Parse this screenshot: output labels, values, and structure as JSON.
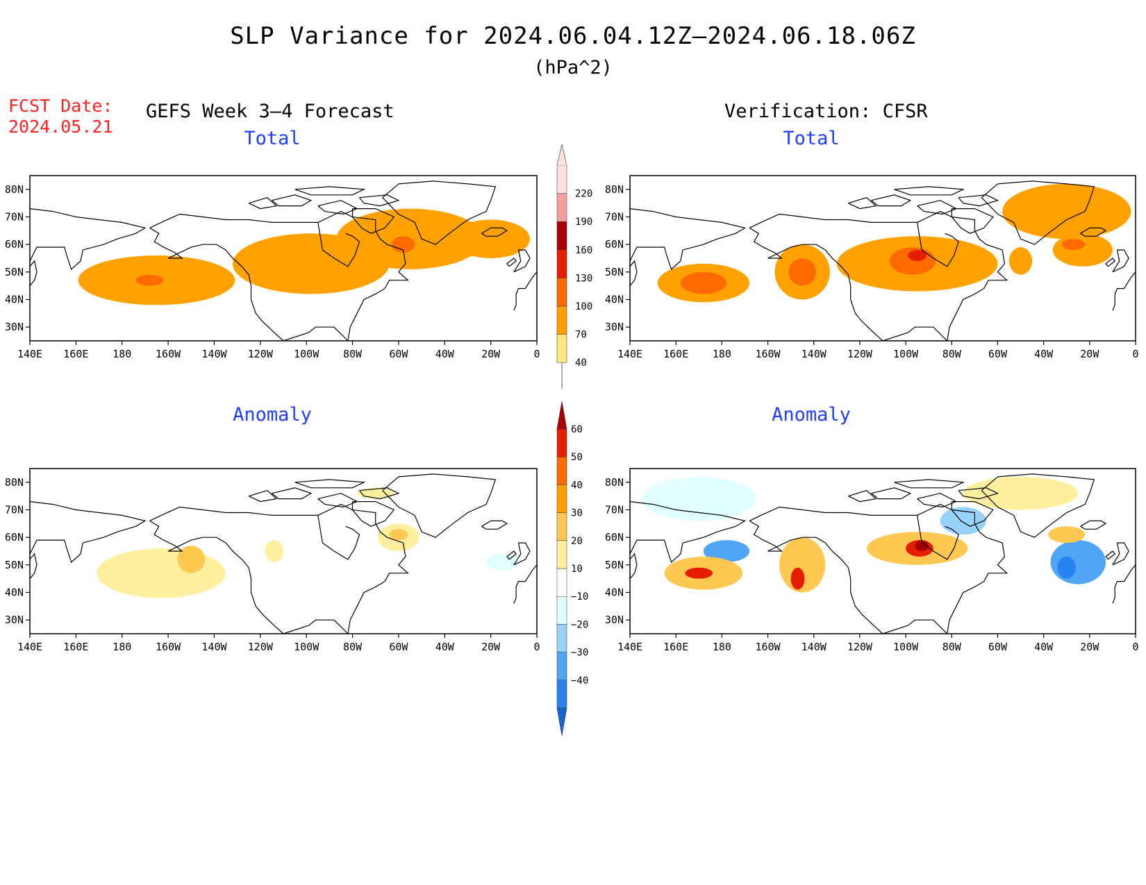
{
  "header": {
    "title": "SLP Variance for 2024.06.04.12Z–2024.06.18.06Z",
    "units": "(hPa^2)",
    "fcst_label": "FCST Date:",
    "fcst_date": "2024.05.21",
    "left_model": "GEFS Week 3–4 Forecast",
    "right_model": "Verification: CFSR"
  },
  "panels": {
    "top_left_title": "Total",
    "top_right_title": "Total",
    "bottom_left_title": "Anomaly",
    "bottom_right_title": "Anomaly"
  },
  "axes": {
    "lon_ticks": [
      "140E",
      "160E",
      "180",
      "160W",
      "140W",
      "120W",
      "100W",
      "80W",
      "60W",
      "40W",
      "20W",
      "0"
    ],
    "lat_ticks": [
      "80N",
      "70N",
      "60N",
      "50N",
      "40N",
      "30N"
    ],
    "lon_range": [
      140,
      360
    ],
    "lat_range": [
      25,
      85
    ]
  },
  "colorbars": {
    "total": {
      "levels": [
        "40",
        "70",
        "100",
        "130",
        "160",
        "190",
        "220"
      ],
      "colors": [
        "#ffe680",
        "#ffa200",
        "#ff6a00",
        "#e61e00",
        "#a80000",
        "#f2a0a0",
        "#fde0e0"
      ]
    },
    "anomaly": {
      "levels": [
        "−40",
        "−30",
        "−20",
        "−10",
        "10",
        "20",
        "30",
        "40",
        "50",
        "60"
      ],
      "colors": [
        "#1464d2",
        "#2882f0",
        "#50a5f5",
        "#96d2fa",
        "#e1ffff",
        "#ffffff",
        "#fff0a0",
        "#ffc850",
        "#ffa200",
        "#ff6a00",
        "#e61e00",
        "#a80000"
      ]
    }
  },
  "fields": {
    "gefs_total": [
      {
        "lon": 195,
        "lat": 47,
        "level": 1,
        "rx": 34,
        "ry": 9
      },
      {
        "lon": 192,
        "lat": 47,
        "level": 2,
        "rx": 6,
        "ry": 2
      },
      {
        "lon": 262,
        "lat": 53,
        "level": 1,
        "rx": 34,
        "ry": 11
      },
      {
        "lon": 305,
        "lat": 62,
        "level": 1,
        "rx": 32,
        "ry": 11
      },
      {
        "lon": 302,
        "lat": 60,
        "level": 2,
        "rx": 5,
        "ry": 3
      },
      {
        "lon": 340,
        "lat": 62,
        "level": 1,
        "rx": 17,
        "ry": 7
      }
    ],
    "cfsr_total": [
      {
        "lon": 172,
        "lat": 46,
        "level": 1,
        "rx": 20,
        "ry": 7
      },
      {
        "lon": 172,
        "lat": 46,
        "level": 2,
        "rx": 10,
        "ry": 4
      },
      {
        "lon": 215,
        "lat": 50,
        "level": 1,
        "rx": 12,
        "ry": 10
      },
      {
        "lon": 215,
        "lat": 50,
        "level": 2,
        "rx": 6,
        "ry": 5
      },
      {
        "lon": 265,
        "lat": 53,
        "level": 1,
        "rx": 35,
        "ry": 10
      },
      {
        "lon": 263,
        "lat": 54,
        "level": 2,
        "rx": 10,
        "ry": 5
      },
      {
        "lon": 265,
        "lat": 56,
        "level": 3,
        "rx": 4,
        "ry": 2
      },
      {
        "lon": 330,
        "lat": 72,
        "level": 1,
        "rx": 28,
        "ry": 10
      },
      {
        "lon": 310,
        "lat": 54,
        "level": 1,
        "rx": 5,
        "ry": 5
      },
      {
        "lon": 337,
        "lat": 58,
        "level": 1,
        "rx": 13,
        "ry": 6
      },
      {
        "lon": 333,
        "lat": 60,
        "level": 2,
        "rx": 5,
        "ry": 2
      }
    ],
    "gefs_anomaly": [
      {
        "lon": 197,
        "lat": 47,
        "level": 6,
        "rx": 28,
        "ry": 9
      },
      {
        "lon": 210,
        "lat": 52,
        "level": 7,
        "rx": 6,
        "ry": 5
      },
      {
        "lon": 246,
        "lat": 55,
        "level": 6,
        "rx": 4,
        "ry": 4
      },
      {
        "lon": 300,
        "lat": 60,
        "level": 6,
        "rx": 9,
        "ry": 5
      },
      {
        "lon": 300,
        "lat": 61,
        "level": 7,
        "rx": 4,
        "ry": 2
      },
      {
        "lon": 290,
        "lat": 76,
        "level": 6,
        "rx": 8,
        "ry": 2
      },
      {
        "lon": 345,
        "lat": 51,
        "level": 4,
        "rx": 7,
        "ry": 3
      }
    ],
    "cfsr_anomaly": [
      {
        "lon": 170,
        "lat": 74,
        "level": 4,
        "rx": 25,
        "ry": 8
      },
      {
        "lon": 285,
        "lat": 66,
        "level": 3,
        "rx": 10,
        "ry": 5
      },
      {
        "lon": 182,
        "lat": 55,
        "level": 2,
        "rx": 10,
        "ry": 4
      },
      {
        "lon": 335,
        "lat": 51,
        "level": 2,
        "rx": 12,
        "ry": 8
      },
      {
        "lon": 330,
        "lat": 49,
        "level": 1,
        "rx": 4,
        "ry": 4
      },
      {
        "lon": 172,
        "lat": 47,
        "level": 7,
        "rx": 17,
        "ry": 6
      },
      {
        "lon": 170,
        "lat": 47,
        "level": 10,
        "rx": 6,
        "ry": 2
      },
      {
        "lon": 215,
        "lat": 50,
        "level": 7,
        "rx": 10,
        "ry": 10
      },
      {
        "lon": 213,
        "lat": 45,
        "level": 10,
        "rx": 3,
        "ry": 4
      },
      {
        "lon": 265,
        "lat": 56,
        "level": 7,
        "rx": 22,
        "ry": 6
      },
      {
        "lon": 266,
        "lat": 56,
        "level": 10,
        "rx": 6,
        "ry": 3
      },
      {
        "lon": 267,
        "lat": 57,
        "level": 11,
        "rx": 3,
        "ry": 2
      },
      {
        "lon": 310,
        "lat": 76,
        "level": 6,
        "rx": 25,
        "ry": 6
      },
      {
        "lon": 330,
        "lat": 61,
        "level": 7,
        "rx": 8,
        "ry": 3
      }
    ]
  },
  "coastline_style": {
    "color": "#000000"
  }
}
